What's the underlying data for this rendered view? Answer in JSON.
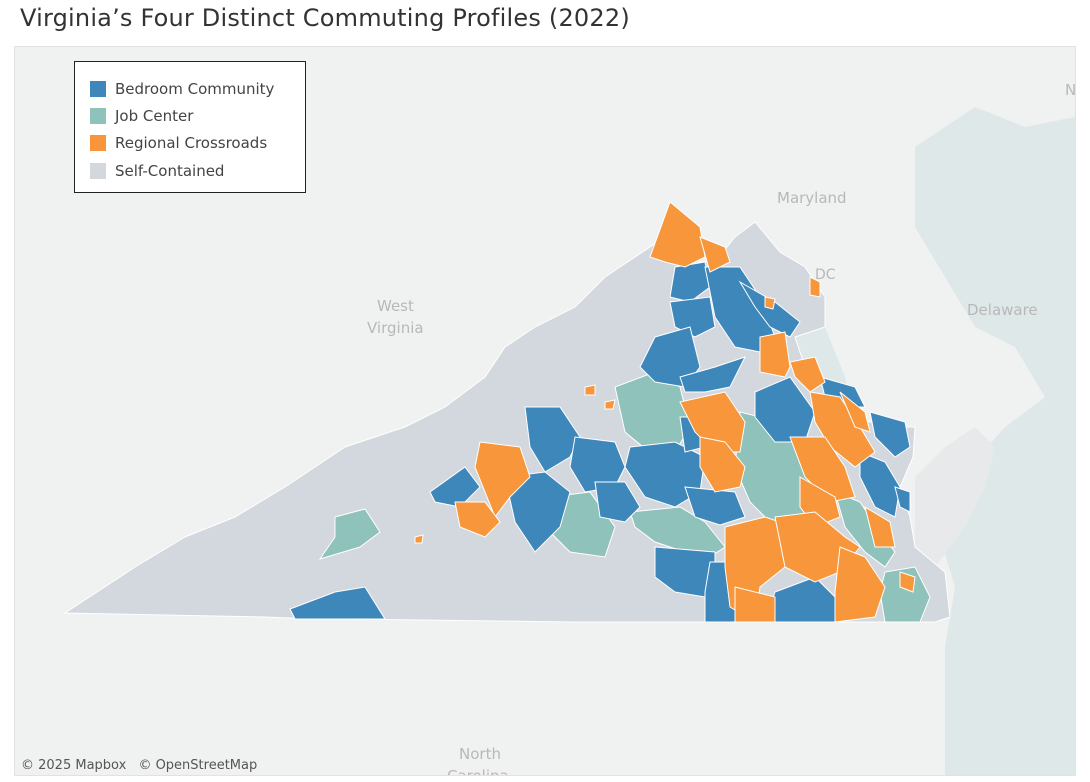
{
  "title": "Virginia’s Four Distinct Commuting Profiles (2022)",
  "colors": {
    "bedroom_community": "#3e87bb",
    "job_center": "#8fc2ba",
    "regional_crossroads": "#f7963a",
    "self_contained": "#d3d7de",
    "background": "#f0f1f1",
    "water": "#dfe8e8"
  },
  "legend": {
    "items": [
      {
        "label": "Bedroom Community",
        "color": "#3e87bb"
      },
      {
        "label": "Job Center",
        "color": "#8fc2ba"
      },
      {
        "label": "Regional Crossroads",
        "color": "#f7963a"
      },
      {
        "label": "Self-Contained",
        "color": "#d3d7de"
      }
    ]
  },
  "map_labels": {
    "maryland": "Maryland",
    "dc": "DC",
    "west_virginia_1": "West",
    "west_virginia_2": "Virginia",
    "delaware": "Delaware",
    "north_carolina_1": "North",
    "north_carolina_2": "Carolina",
    "edge_letter": "N"
  },
  "attribution": {
    "mapbox": "© 2025 Mapbox",
    "osm": "© OpenStreetMap"
  }
}
